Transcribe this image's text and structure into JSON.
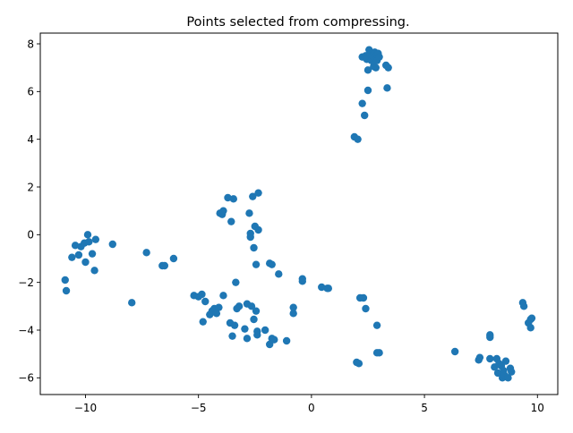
{
  "chart_data": {
    "type": "scatter",
    "title": "Points selected from compressing.",
    "xlabel": "",
    "ylabel": "",
    "xlim": [
      -12.0,
      10.9
    ],
    "ylim": [
      -6.7,
      8.45
    ],
    "xticks": [
      -10,
      -5,
      0,
      5,
      10
    ],
    "yticks": [
      -6,
      -4,
      -2,
      0,
      2,
      4,
      6,
      8
    ],
    "grid": false,
    "legend": "none",
    "marker_color": "#1f77b4",
    "series": [
      {
        "points": [
          [
            -10.9,
            -1.9
          ],
          [
            -10.85,
            -2.35
          ],
          [
            -10.6,
            -0.95
          ],
          [
            -10.45,
            -0.45
          ],
          [
            -10.3,
            -0.85
          ],
          [
            -10.2,
            -0.5
          ],
          [
            -10.05,
            -0.35
          ],
          [
            -10.0,
            -1.15
          ],
          [
            -9.9,
            0.0
          ],
          [
            -9.85,
            -0.3
          ],
          [
            -9.7,
            -0.8
          ],
          [
            -9.6,
            -1.5
          ],
          [
            -9.55,
            -0.2
          ],
          [
            -8.8,
            -0.4
          ],
          [
            -7.95,
            -2.85
          ],
          [
            -7.3,
            -0.75
          ],
          [
            -6.6,
            -1.3
          ],
          [
            -6.5,
            -1.3
          ],
          [
            -6.1,
            -1.0
          ],
          [
            -5.2,
            -2.55
          ],
          [
            -5.0,
            -2.6
          ],
          [
            -4.85,
            -2.5
          ],
          [
            -4.8,
            -3.65
          ],
          [
            -4.7,
            -2.8
          ],
          [
            -4.5,
            -3.35
          ],
          [
            -4.4,
            -3.2
          ],
          [
            -4.3,
            -3.1
          ],
          [
            -4.2,
            -3.3
          ],
          [
            -4.1,
            -3.05
          ],
          [
            -4.05,
            0.9
          ],
          [
            -3.95,
            0.85
          ],
          [
            -3.9,
            1.0
          ],
          [
            -3.9,
            -2.55
          ],
          [
            -3.7,
            1.55
          ],
          [
            -3.6,
            -3.7
          ],
          [
            -3.55,
            0.55
          ],
          [
            -3.5,
            -4.25
          ],
          [
            -3.45,
            1.5
          ],
          [
            -3.4,
            -3.8
          ],
          [
            -3.35,
            -2.0
          ],
          [
            -3.3,
            -3.1
          ],
          [
            -3.2,
            -3.0
          ],
          [
            -2.95,
            -3.95
          ],
          [
            -2.85,
            -4.35
          ],
          [
            -2.85,
            -2.9
          ],
          [
            -2.75,
            0.9
          ],
          [
            -2.7,
            0.05
          ],
          [
            -2.7,
            -0.1
          ],
          [
            -2.65,
            -3.0
          ],
          [
            -2.6,
            1.6
          ],
          [
            -2.55,
            -0.55
          ],
          [
            -2.55,
            -3.55
          ],
          [
            -2.5,
            0.35
          ],
          [
            -2.45,
            -1.25
          ],
          [
            -2.45,
            -3.2
          ],
          [
            -2.4,
            -4.05
          ],
          [
            -2.4,
            -4.2
          ],
          [
            -2.35,
            1.75
          ],
          [
            -2.35,
            0.2
          ],
          [
            -2.05,
            -4.0
          ],
          [
            -1.85,
            -1.2
          ],
          [
            -1.85,
            -4.6
          ],
          [
            -1.75,
            -1.25
          ],
          [
            -1.75,
            -4.35
          ],
          [
            -1.65,
            -4.4
          ],
          [
            -1.45,
            -1.65
          ],
          [
            -1.1,
            -4.45
          ],
          [
            -0.8,
            -3.05
          ],
          [
            -0.8,
            -3.3
          ],
          [
            -0.4,
            -1.85
          ],
          [
            -0.4,
            -1.95
          ],
          [
            0.45,
            -2.2
          ],
          [
            0.7,
            -2.25
          ],
          [
            0.75,
            -2.25
          ],
          [
            1.9,
            4.1
          ],
          [
            2.05,
            4.0
          ],
          [
            2.0,
            -5.35
          ],
          [
            2.1,
            -5.4
          ],
          [
            2.15,
            -2.65
          ],
          [
            2.3,
            -2.65
          ],
          [
            2.25,
            5.5
          ],
          [
            2.25,
            7.45
          ],
          [
            2.35,
            5.0
          ],
          [
            2.4,
            7.5
          ],
          [
            2.4,
            -3.1
          ],
          [
            2.45,
            7.35
          ],
          [
            2.5,
            6.9
          ],
          [
            2.5,
            6.05
          ],
          [
            2.55,
            7.75
          ],
          [
            2.6,
            7.55
          ],
          [
            2.65,
            7.3
          ],
          [
            2.7,
            7.5
          ],
          [
            2.75,
            7.6
          ],
          [
            2.75,
            7.05
          ],
          [
            2.8,
            7.65
          ],
          [
            2.85,
            7.4
          ],
          [
            2.85,
            7.0
          ],
          [
            2.9,
            7.3
          ],
          [
            2.9,
            7.55
          ],
          [
            2.95,
            7.6
          ],
          [
            3.0,
            7.45
          ],
          [
            2.9,
            -3.8
          ],
          [
            2.9,
            -4.95
          ],
          [
            3.0,
            -4.95
          ],
          [
            3.3,
            7.1
          ],
          [
            3.4,
            7.0
          ],
          [
            3.35,
            6.15
          ],
          [
            6.35,
            -4.9
          ],
          [
            7.4,
            -5.25
          ],
          [
            7.45,
            -5.15
          ],
          [
            7.9,
            -4.2
          ],
          [
            7.9,
            -4.3
          ],
          [
            7.9,
            -5.2
          ],
          [
            8.1,
            -5.55
          ],
          [
            8.2,
            -5.2
          ],
          [
            8.25,
            -5.8
          ],
          [
            8.3,
            -5.4
          ],
          [
            8.4,
            -5.5
          ],
          [
            8.45,
            -6.0
          ],
          [
            8.5,
            -5.7
          ],
          [
            8.55,
            -5.9
          ],
          [
            8.6,
            -5.3
          ],
          [
            8.7,
            -6.0
          ],
          [
            8.8,
            -5.6
          ],
          [
            8.85,
            -5.75
          ],
          [
            9.35,
            -2.85
          ],
          [
            9.4,
            -3.0
          ],
          [
            9.6,
            -3.7
          ],
          [
            9.7,
            -3.55
          ],
          [
            9.7,
            -3.9
          ],
          [
            9.75,
            -3.5
          ]
        ]
      }
    ]
  }
}
